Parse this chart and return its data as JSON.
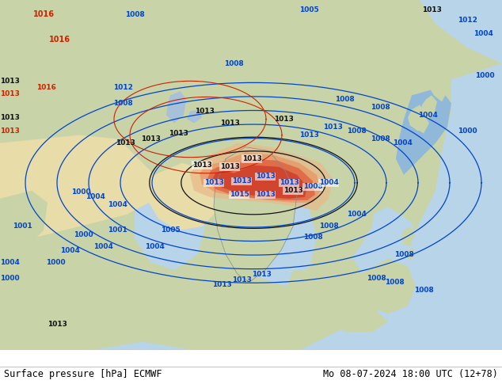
{
  "title_left": "Surface pressure [hPa] ECMWF",
  "title_right": "Mo 08-07-2024 18:00 UTC (12+78)",
  "title_fontsize": 8.5,
  "title_color": "#000000",
  "background_color": "#ffffff",
  "fig_width": 6.34,
  "fig_height": 4.9,
  "dpi": 100,
  "land_color_main": "#c8d4a8",
  "land_color_desert": "#e8dca8",
  "land_color_tibet": "#d4b896",
  "sea_color": "#b8d4e8",
  "sea_color_dark": "#90b8d8",
  "hot_color1": "#cc3322",
  "hot_color2": "#dd6644",
  "hot_color3": "#e89868",
  "warm_color": "#e8b888",
  "isobar_blue": "#0044cc",
  "isobar_black": "#111111",
  "isobar_red": "#cc2200",
  "footer_line_color": "#aaaaaa"
}
